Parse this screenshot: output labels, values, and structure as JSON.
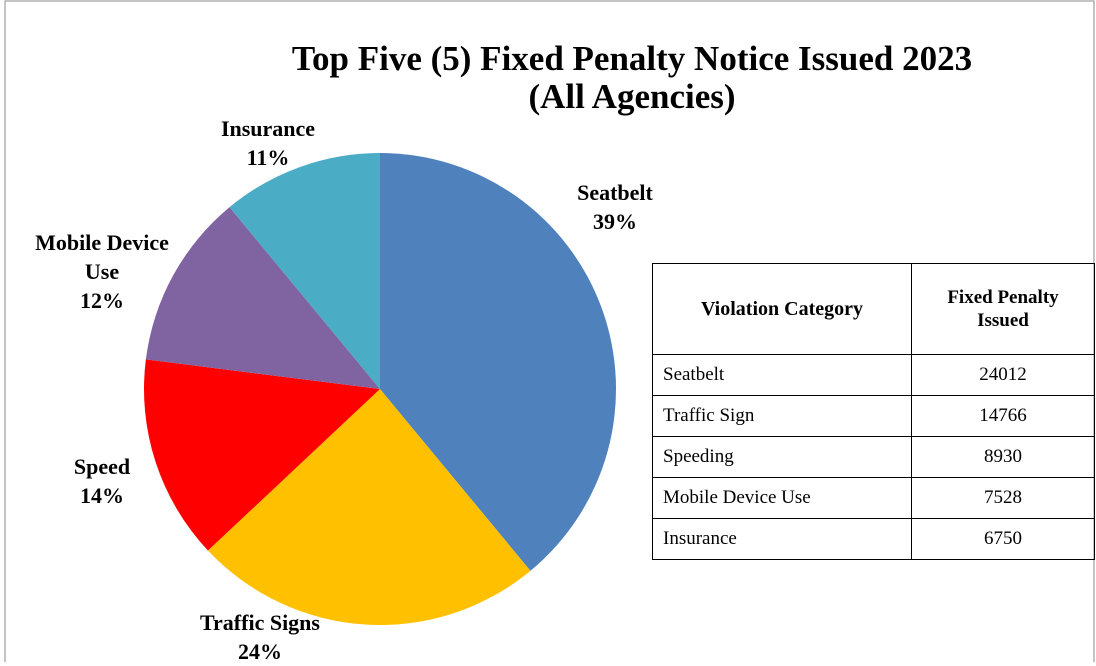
{
  "chart_data": {
    "type": "pie",
    "title": [
      "Top Five (5) Fixed Penalty Notice Issued 2023",
      "(All Agencies)"
    ],
    "categories": [
      "Seatbelt",
      "Traffic Signs",
      "Speed",
      "Mobile Device Use",
      "Insurance"
    ],
    "values": [
      39,
      24,
      14,
      12,
      11
    ],
    "value_labels": [
      "39%",
      "24%",
      "14%",
      "12%",
      "11%"
    ],
    "colors": [
      "#4f81bd",
      "#ffc000",
      "#ff0000",
      "#8064a2",
      "#4bacc6"
    ]
  },
  "table": {
    "header": [
      "Violation Category",
      "Fixed Penalty Issued"
    ],
    "rows": [
      [
        "Seatbelt",
        24012
      ],
      [
        "Traffic Sign",
        14766
      ],
      [
        "Speeding",
        8930
      ],
      [
        "Mobile Device Use",
        7528
      ],
      [
        "Insurance",
        6750
      ]
    ]
  }
}
